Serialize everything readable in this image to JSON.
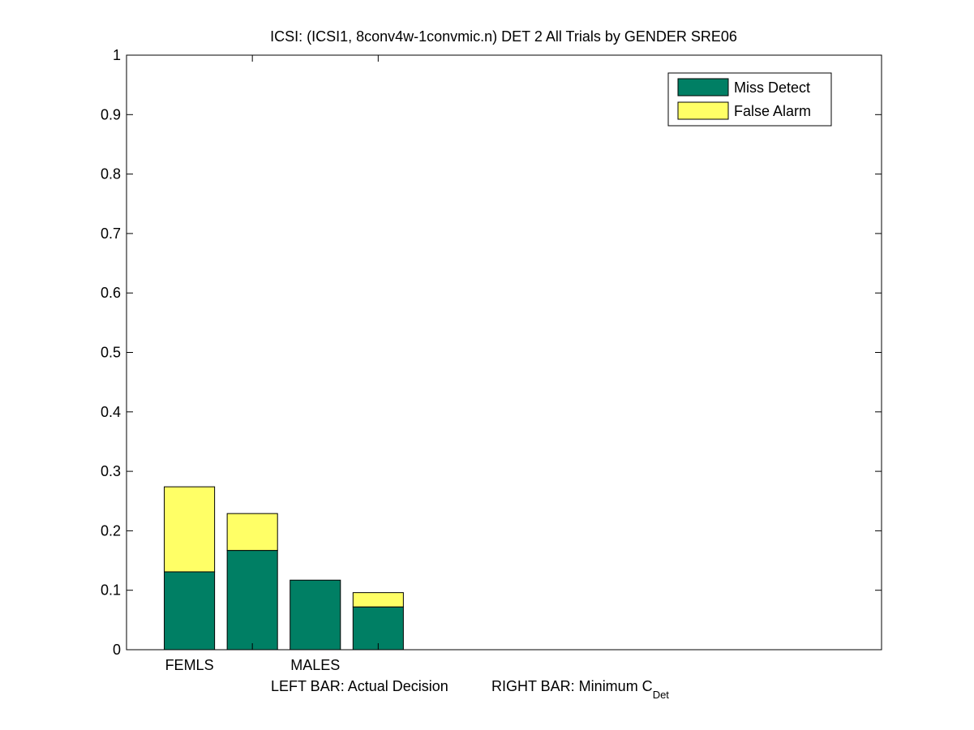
{
  "chart_data": {
    "type": "bar",
    "stacked": true,
    "title": "ICSI: (ICSI1, 8conv4w-1convmic.n) DET 2 All Trials by GENDER SRE06",
    "xlabel_left": "LEFT BAR: Actual Decision",
    "xlabel_right_main": "RIGHT BAR: Minimum C",
    "xlabel_right_sub": "Det",
    "ylabel": "",
    "ylim": [
      0,
      1
    ],
    "yticks": [
      "0",
      "0.1",
      "0.2",
      "0.3",
      "0.4",
      "0.5",
      "0.6",
      "0.7",
      "0.8",
      "0.9",
      "1"
    ],
    "xlim": [
      0,
      6
    ],
    "xtick_positions": [
      1,
      2
    ],
    "categories": [
      "FEMLS",
      "MALES"
    ],
    "bar_roles": [
      "Actual Decision",
      "Minimum C_Det"
    ],
    "series": [
      {
        "name": "Miss Detect",
        "color": "#007f64",
        "values": [
          [
            0.131,
            0.167
          ],
          [
            0.117,
            0.072
          ]
        ]
      },
      {
        "name": "False Alarm",
        "color": "#ffff66",
        "values": [
          [
            0.143,
            0.062
          ],
          [
            0.0,
            0.024
          ]
        ]
      }
    ],
    "legend_position": "top-right",
    "grid": false
  }
}
